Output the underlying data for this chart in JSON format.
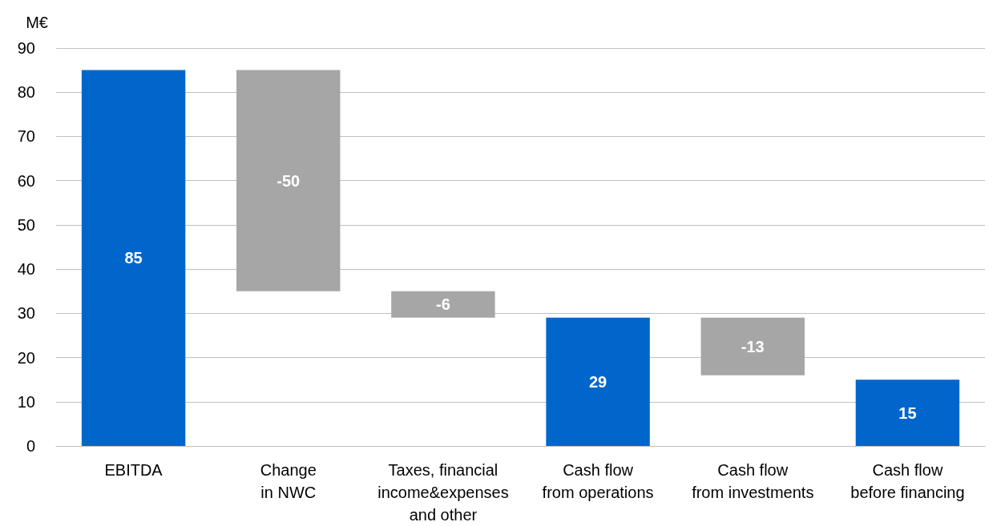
{
  "chart_data": {
    "type": "bar",
    "ylabel": "M€",
    "categories": [
      "EBITDA",
      "Change\nin NWC",
      "Taxes, financial\nincome&expenses\nand other",
      "Cash flow\nfrom operations",
      "Cash flow\nfrom investments",
      "Cash flow\nbefore financing"
    ],
    "values": [
      85,
      -50,
      -6,
      29,
      -13,
      15
    ],
    "base": [
      0,
      85,
      35,
      0,
      29,
      0
    ],
    "colors": [
      "#0066cc",
      "#a6a6a6",
      "#a6a6a6",
      "#0066cc",
      "#a6a6a6",
      "#0066cc"
    ],
    "ylim": [
      0,
      90
    ],
    "yticks": [
      0,
      10,
      20,
      30,
      40,
      50,
      60,
      70,
      80,
      90
    ],
    "grid": "y",
    "data_labels": true
  }
}
